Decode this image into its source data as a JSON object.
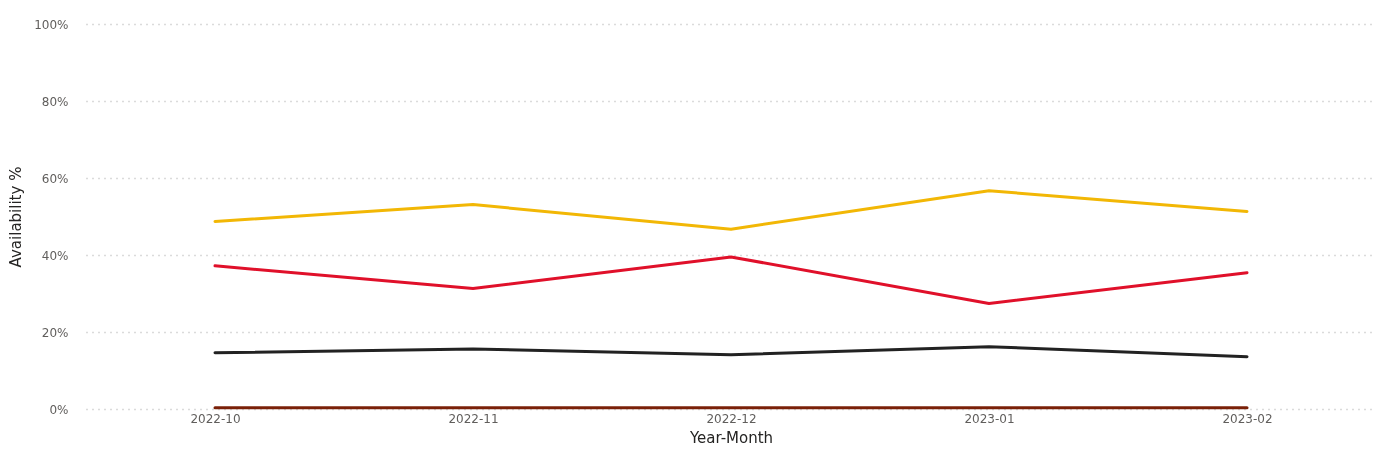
{
  "chart_data": {
    "type": "line",
    "xlabel": "Year-Month",
    "ylabel": "Availability %",
    "categories": [
      "2022-10",
      "2022-11",
      "2022-12",
      "2023-01",
      "2023-02"
    ],
    "series": [
      {
        "color": "#f2b705",
        "values": [
          48.7,
          53.1,
          46.7,
          56.7,
          51.3
        ]
      },
      {
        "color": "#e0102a",
        "values": [
          37.2,
          31.3,
          39.5,
          27.4,
          35.4
        ]
      },
      {
        "color": "#222222",
        "values": [
          14.6,
          15.6,
          14.1,
          16.2,
          13.6
        ]
      },
      {
        "color": "#7a2008",
        "values": [
          0.3,
          0.3,
          0.3,
          0.3,
          0.3
        ]
      }
    ],
    "ylim": [
      0,
      100
    ],
    "yticks": [
      {
        "value": 0,
        "label": "0%"
      },
      {
        "value": 20,
        "label": "20%"
      },
      {
        "value": 40,
        "label": "40%"
      },
      {
        "value": 60,
        "label": "60%"
      },
      {
        "value": 80,
        "label": "80%"
      },
      {
        "value": 100,
        "label": "100%"
      }
    ],
    "grid": "y",
    "legend": false,
    "marker": "none",
    "line_style": "solid"
  }
}
